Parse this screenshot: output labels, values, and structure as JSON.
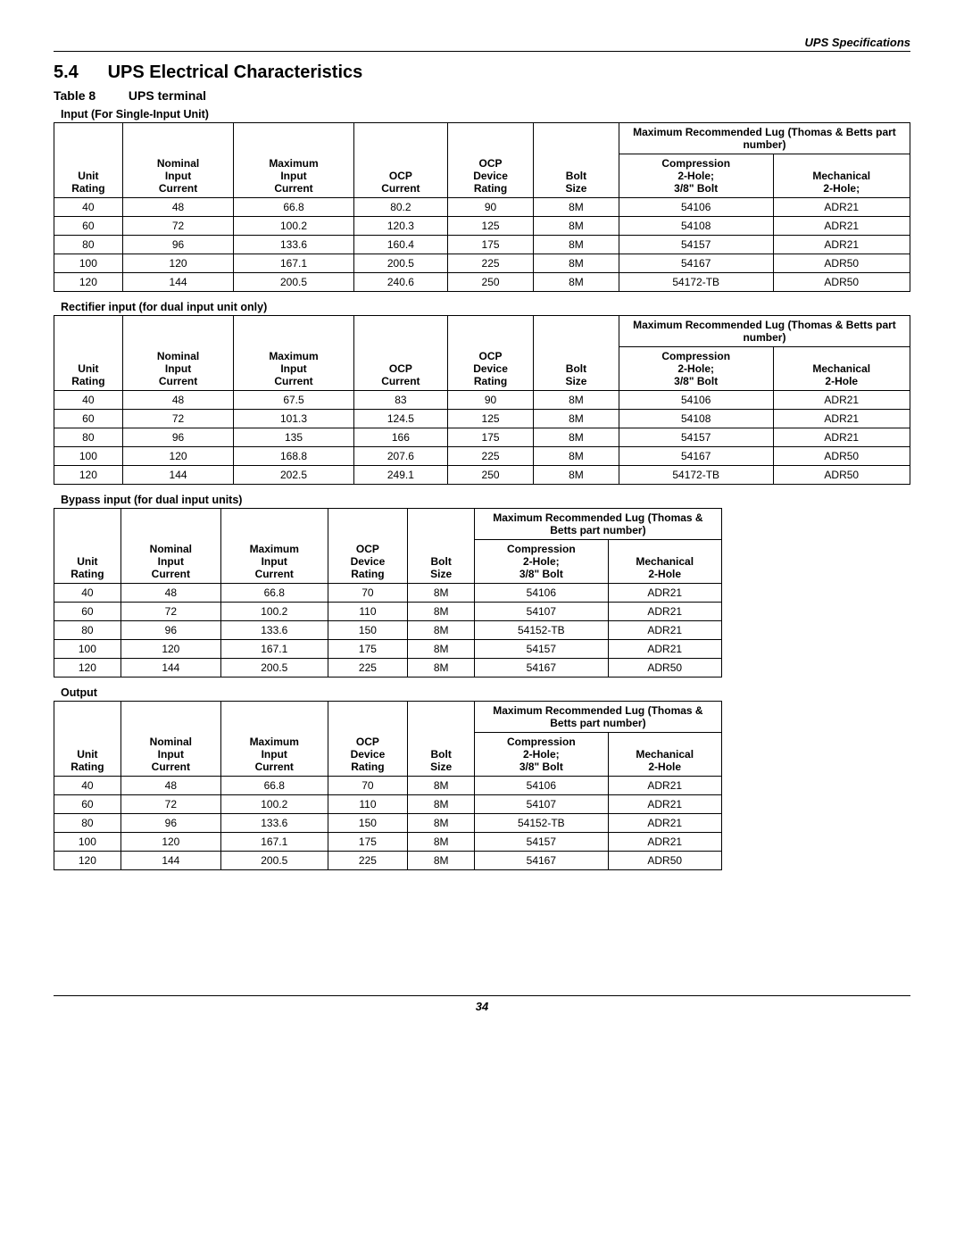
{
  "header": {
    "right": "UPS Specifications"
  },
  "section": {
    "number": "5.4",
    "title": "UPS Electrical Characteristics"
  },
  "tableLabel": {
    "num": "Table 8",
    "name": "UPS terminal"
  },
  "wideHeaders": {
    "group": "Maximum Recommended Lug (Thomas & Betts part number)",
    "c0": "Unit Rating",
    "c1": "Nominal Input Current",
    "c2": "Maximum Input Current",
    "c3": "OCP Current",
    "c4": "OCP Device Rating",
    "c5": "Bolt Size",
    "c6": "Compression 2-Hole; 3/8\" Bolt",
    "c7": "Mechanical 2-Hole;"
  },
  "wideHeaders2": {
    "c7": "Mechanical 2-Hole"
  },
  "narrowHeaders": {
    "group": "Maximum Recommended Lug (Thomas & Betts part number)",
    "c0": "Unit Rating",
    "c1": "Nominal Input Current",
    "c2": "Maximum Input Current",
    "c3": "OCP Device Rating",
    "c4": "Bolt Size",
    "c5": "Compression 2-Hole; 3/8\" Bolt",
    "c6": "Mechanical 2-Hole"
  },
  "tables": [
    {
      "caption": "Input (For Single-Input Unit)",
      "layout": "wide",
      "mechHeader": "Mechanical 2-Hole;",
      "rows": [
        [
          "40",
          "48",
          "66.8",
          "80.2",
          "90",
          "8M",
          "54106",
          "ADR21"
        ],
        [
          "60",
          "72",
          "100.2",
          "120.3",
          "125",
          "8M",
          "54108",
          "ADR21"
        ],
        [
          "80",
          "96",
          "133.6",
          "160.4",
          "175",
          "8M",
          "54157",
          "ADR21"
        ],
        [
          "100",
          "120",
          "167.1",
          "200.5",
          "225",
          "8M",
          "54167",
          "ADR50"
        ],
        [
          "120",
          "144",
          "200.5",
          "240.6",
          "250",
          "8M",
          "54172-TB",
          "ADR50"
        ]
      ]
    },
    {
      "caption": "Rectifier input (for dual input unit only)",
      "layout": "wide",
      "mechHeader": "Mechanical 2-Hole",
      "rows": [
        [
          "40",
          "48",
          "67.5",
          "83",
          "90",
          "8M",
          "54106",
          "ADR21"
        ],
        [
          "60",
          "72",
          "101.3",
          "124.5",
          "125",
          "8M",
          "54108",
          "ADR21"
        ],
        [
          "80",
          "96",
          "135",
          "166",
          "175",
          "8M",
          "54157",
          "ADR21"
        ],
        [
          "100",
          "120",
          "168.8",
          "207.6",
          "225",
          "8M",
          "54167",
          "ADR50"
        ],
        [
          "120",
          "144",
          "202.5",
          "249.1",
          "250",
          "8M",
          "54172-TB",
          "ADR50"
        ]
      ]
    },
    {
      "caption": "Bypass input (for dual input units)",
      "layout": "narrow",
      "rows": [
        [
          "40",
          "48",
          "66.8",
          "70",
          "8M",
          "54106",
          "ADR21"
        ],
        [
          "60",
          "72",
          "100.2",
          "110",
          "8M",
          "54107",
          "ADR21"
        ],
        [
          "80",
          "96",
          "133.6",
          "150",
          "8M",
          "54152-TB",
          "ADR21"
        ],
        [
          "100",
          "120",
          "167.1",
          "175",
          "8M",
          "54157",
          "ADR21"
        ],
        [
          "120",
          "144",
          "200.5",
          "225",
          "8M",
          "54167",
          "ADR50"
        ]
      ]
    },
    {
      "caption": "Output",
      "layout": "narrow",
      "rows": [
        [
          "40",
          "48",
          "66.8",
          "70",
          "8M",
          "54106",
          "ADR21"
        ],
        [
          "60",
          "72",
          "100.2",
          "110",
          "8M",
          "54107",
          "ADR21"
        ],
        [
          "80",
          "96",
          "133.6",
          "150",
          "8M",
          "54152-TB",
          "ADR21"
        ],
        [
          "100",
          "120",
          "167.1",
          "175",
          "8M",
          "54157",
          "ADR21"
        ],
        [
          "120",
          "144",
          "200.5",
          "225",
          "8M",
          "54167",
          "ADR50"
        ]
      ]
    }
  ],
  "pageNumber": "34"
}
